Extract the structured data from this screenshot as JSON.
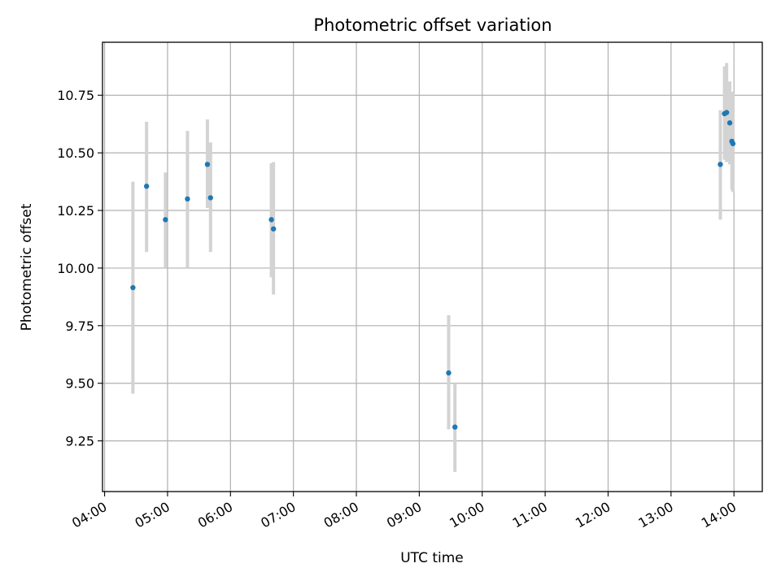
{
  "chart_data": {
    "type": "scatter",
    "title": "Photometric offset variation",
    "xlabel": "UTC time",
    "ylabel": "Photometric offset",
    "x_tick_labels": [
      "04:00",
      "05:00",
      "06:00",
      "07:00",
      "08:00",
      "09:00",
      "10:00",
      "11:00",
      "12:00",
      "13:00",
      "14:00"
    ],
    "x_tick_values": [
      "04:00",
      "05:00",
      "06:00",
      "07:00",
      "08:00",
      "09:00",
      "10:00",
      "11:00",
      "12:00",
      "13:00",
      "14:00"
    ],
    "y_tick_labels": [
      "9.25",
      "9.50",
      "9.75",
      "10.00",
      "10.25",
      "10.50",
      "10.75"
    ],
    "y_tick_values": [
      9.25,
      9.5,
      9.75,
      10.0,
      10.25,
      10.5,
      10.75
    ],
    "xlim": [
      "03:58",
      "14:27"
    ],
    "ylim": [
      9.03,
      10.98
    ],
    "grid": true,
    "marker_color": "#1f77b4",
    "errorbar_color": "#d3d3d3",
    "series": [
      {
        "points": [
          {
            "x": "04:27",
            "y": 9.915,
            "err_low": 9.455,
            "err_high": 10.375
          },
          {
            "x": "04:40",
            "y": 10.355,
            "err_low": 10.07,
            "err_high": 10.635
          },
          {
            "x": "04:58",
            "y": 10.21,
            "err_low": 10.0,
            "err_high": 10.415
          },
          {
            "x": "05:19",
            "y": 10.3,
            "err_low": 10.0,
            "err_high": 10.595
          },
          {
            "x": "05:38",
            "y": 10.45,
            "err_low": 10.26,
            "err_high": 10.645
          },
          {
            "x": "05:41",
            "y": 10.305,
            "err_low": 10.07,
            "err_high": 10.545
          },
          {
            "x": "06:39",
            "y": 10.21,
            "err_low": 9.96,
            "err_high": 10.455
          },
          {
            "x": "06:41",
            "y": 10.17,
            "err_low": 9.885,
            "err_high": 10.46
          },
          {
            "x": "09:28",
            "y": 9.545,
            "err_low": 9.3,
            "err_high": 9.795
          },
          {
            "x": "09:34",
            "y": 9.31,
            "err_low": 9.115,
            "err_high": 9.5
          },
          {
            "x": "13:47",
            "y": 10.45,
            "err_low": 10.21,
            "err_high": 10.685
          },
          {
            "x": "13:51",
            "y": 10.67,
            "err_low": 10.47,
            "err_high": 10.875
          },
          {
            "x": "13:53",
            "y": 10.675,
            "err_low": 10.46,
            "err_high": 10.89
          },
          {
            "x": "13:56",
            "y": 10.63,
            "err_low": 10.45,
            "err_high": 10.81
          },
          {
            "x": "13:58",
            "y": 10.55,
            "err_low": 10.34,
            "err_high": 10.765
          },
          {
            "x": "13:59",
            "y": 10.54,
            "err_low": 10.33,
            "err_high": 10.76
          }
        ]
      }
    ]
  }
}
